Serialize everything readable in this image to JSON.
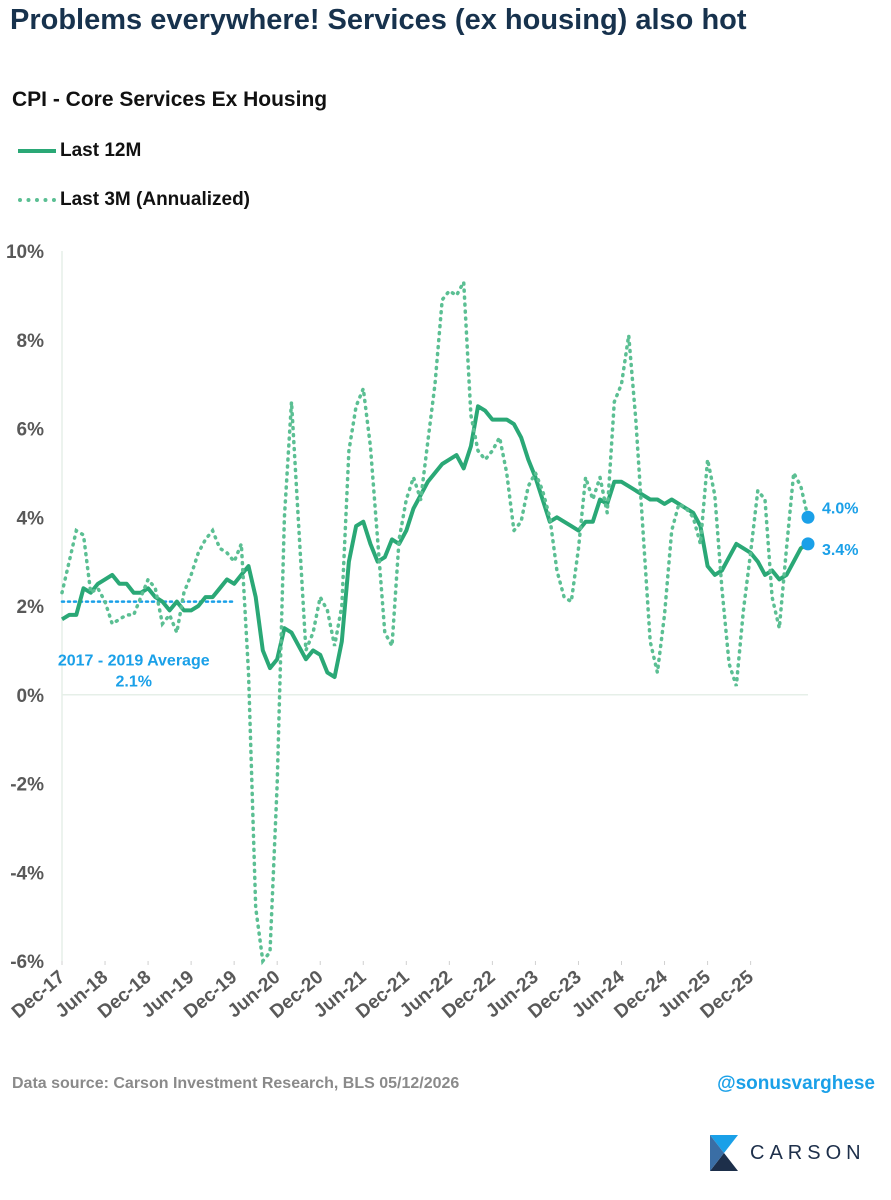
{
  "headline": "Problems everywhere! Services (ex housing) also hot",
  "source_text": "Data source: Carson Investment Research, BLS   05/12/2026",
  "handle": "@sonusvarghese",
  "logo_text": "CARSON",
  "colors": {
    "line12": "#2aa876",
    "line3": "#5bbf93",
    "accent": "#1aa0e8",
    "title": "#17324d"
  },
  "chart_data": {
    "type": "line",
    "title": "CPI - Core Services Ex Housing",
    "ylim": [
      -6,
      10
    ],
    "yticks": [
      -6,
      -4,
      -2,
      0,
      2,
      4,
      6,
      8,
      10
    ],
    "ytick_labels": [
      "-6%",
      "-4%",
      "-2%",
      "0%",
      "2%",
      "4%",
      "6%",
      "8%",
      "10%"
    ],
    "xticks": [
      "Dec-17",
      "Jun-18",
      "Dec-18",
      "Jun-19",
      "Dec-19",
      "Jun-20",
      "Dec-20",
      "Jun-21",
      "Dec-21",
      "Jun-22",
      "Dec-22",
      "Jun-23",
      "Dec-23",
      "Jun-24",
      "Dec-24",
      "Jun-25",
      "Dec-25"
    ],
    "x_start": "Dec-17",
    "legend_position": "top-left",
    "grid": false,
    "series": [
      {
        "name": "Last 12M",
        "style": "solid",
        "values": [
          1.7,
          1.8,
          1.8,
          2.4,
          2.3,
          2.5,
          2.6,
          2.7,
          2.5,
          2.5,
          2.3,
          2.3,
          2.4,
          2.2,
          2.1,
          1.9,
          2.1,
          1.9,
          1.9,
          2.0,
          2.2,
          2.2,
          2.4,
          2.6,
          2.5,
          2.7,
          2.9,
          2.2,
          1.0,
          0.6,
          0.8,
          1.5,
          1.4,
          1.1,
          0.8,
          1.0,
          0.9,
          0.5,
          0.4,
          1.2,
          3.0,
          3.8,
          3.9,
          3.4,
          3.0,
          3.1,
          3.5,
          3.4,
          3.7,
          4.2,
          4.5,
          4.8,
          5.0,
          5.2,
          5.3,
          5.4,
          5.1,
          5.6,
          6.5,
          6.4,
          6.2,
          6.2,
          6.2,
          6.1,
          5.8,
          5.3,
          4.9,
          4.4,
          3.9,
          4.0,
          3.9,
          3.8,
          3.7,
          3.9,
          3.9,
          4.4,
          4.3,
          4.8,
          4.8,
          4.7,
          4.6,
          4.5,
          4.4,
          4.4,
          4.3,
          4.4,
          4.3,
          4.2,
          4.1,
          3.8,
          2.9,
          2.7,
          2.8,
          3.1,
          3.4,
          3.3,
          3.2,
          3.0,
          2.7,
          2.8,
          2.6,
          2.7,
          3.0,
          3.3,
          3.4
        ]
      },
      {
        "name": "Last 3M (Annualized)",
        "style": "dotted",
        "values": [
          2.3,
          3.0,
          3.7,
          3.6,
          2.3,
          2.4,
          2.1,
          1.6,
          1.7,
          1.8,
          1.8,
          2.2,
          2.6,
          2.4,
          1.6,
          1.8,
          1.4,
          2.3,
          2.7,
          3.2,
          3.5,
          3.7,
          3.3,
          3.2,
          3.0,
          3.4,
          0.5,
          -4.8,
          -6.0,
          -5.8,
          -2.0,
          4.0,
          6.6,
          3.8,
          1.0,
          1.4,
          2.2,
          1.9,
          1.1,
          2.0,
          5.5,
          6.5,
          6.9,
          5.6,
          3.5,
          1.4,
          1.1,
          3.5,
          4.4,
          4.9,
          4.4,
          5.7,
          7.0,
          8.9,
          9.1,
          9.0,
          9.3,
          6.3,
          5.5,
          5.3,
          5.5,
          5.8,
          5.0,
          3.7,
          3.9,
          4.7,
          5.0,
          4.6,
          4.0,
          2.8,
          2.2,
          2.1,
          3.3,
          4.9,
          4.4,
          4.9,
          4.1,
          6.6,
          7.0,
          8.1,
          6.2,
          3.7,
          1.2,
          0.5,
          1.8,
          3.7,
          4.3,
          4.2,
          4.0,
          3.4,
          5.3,
          4.5,
          2.4,
          0.7,
          0.2,
          1.9,
          3.2,
          4.6,
          4.4,
          2.2,
          1.5,
          3.3,
          5.0,
          4.7,
          4.0
        ]
      }
    ],
    "annotations": [
      {
        "text": "2017 - 2019 Average",
        "line2": "2.1%",
        "value": 2.1
      },
      {
        "text": "4.0%",
        "value": 4.0
      },
      {
        "text": "3.4%",
        "value": 3.4
      }
    ]
  }
}
